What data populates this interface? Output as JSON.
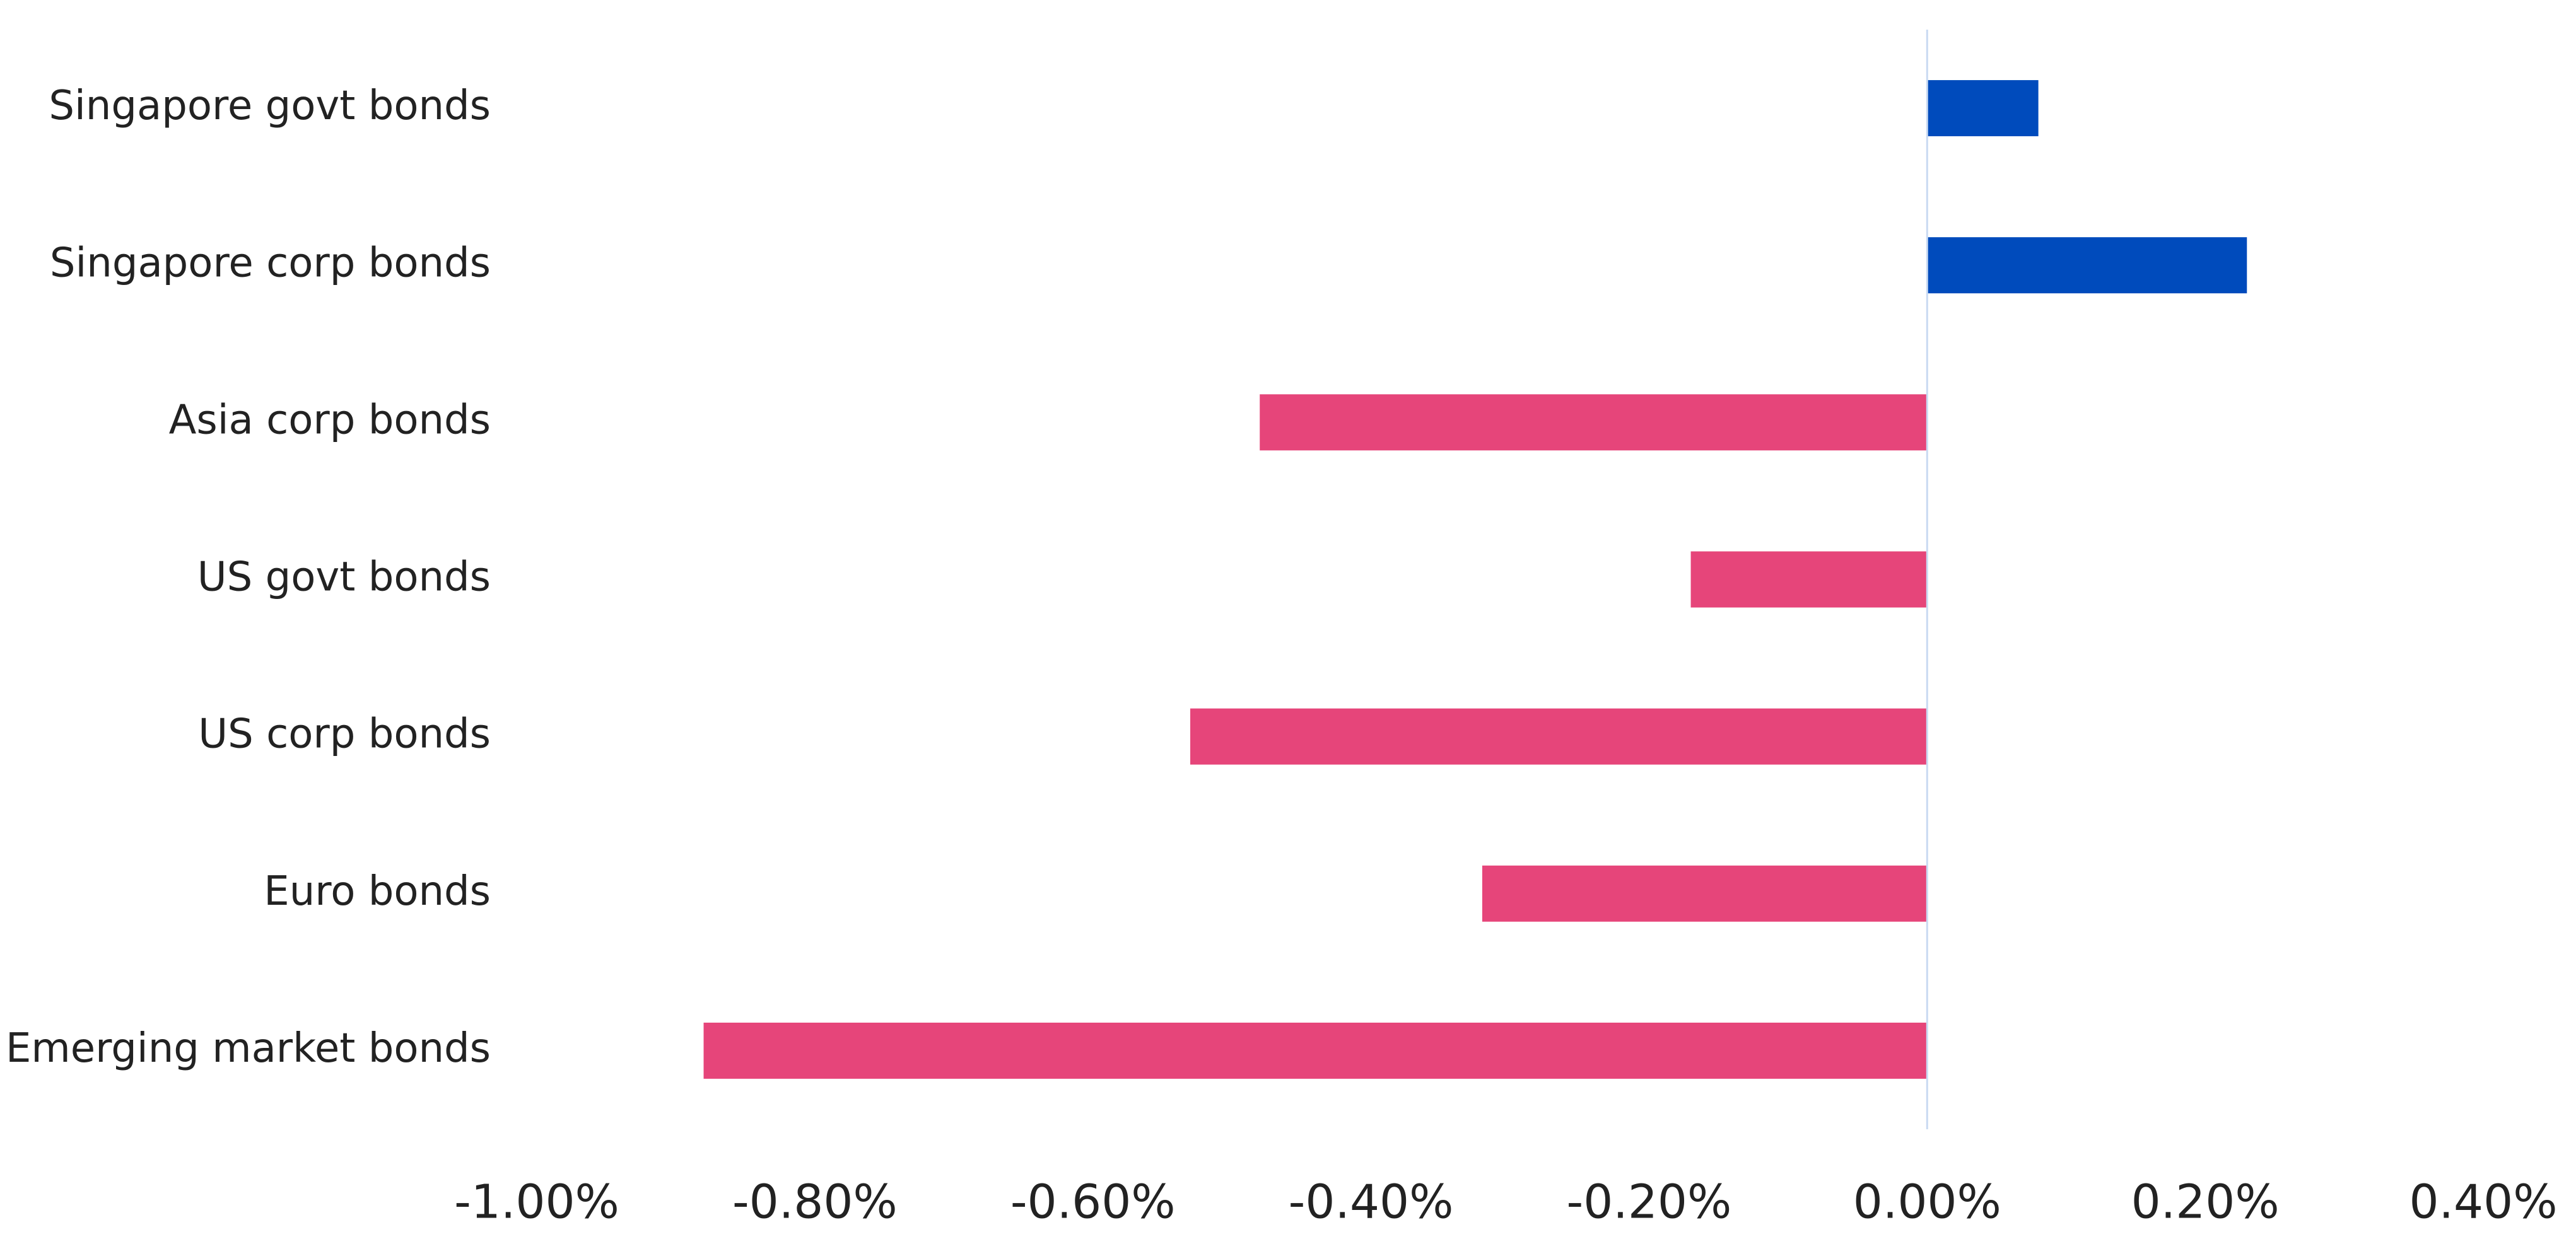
{
  "chart_data": {
    "type": "hbar",
    "categories": [
      "Singapore govt bonds",
      "Singapore corp bonds",
      "Asia corp bonds",
      "US govt bonds",
      "US corp bonds",
      "Euro bonds",
      "Emerging market bonds"
    ],
    "values": [
      0.08,
      0.23,
      -0.48,
      -0.17,
      -0.53,
      -0.32,
      -0.88
    ],
    "colors": [
      "#004bbc",
      "#004bbc",
      "#e6457a",
      "#e6457a",
      "#e6457a",
      "#e6457a",
      "#e6457a"
    ],
    "xlim": [
      -1,
      0.4
    ],
    "xticks": [
      {
        "value": -1,
        "label": "-1.00%"
      },
      {
        "value": -0.8,
        "label": "-0.80%"
      },
      {
        "value": -0.6,
        "label": "-0.60%"
      },
      {
        "value": -0.4,
        "label": "-0.40%"
      },
      {
        "value": -0.2,
        "label": "-0.20%"
      },
      {
        "value": 0,
        "label": "0.00%"
      },
      {
        "value": 0.2,
        "label": "0.20%"
      },
      {
        "value": 0.4,
        "label": "0.40%"
      }
    ],
    "zero_line": true
  }
}
